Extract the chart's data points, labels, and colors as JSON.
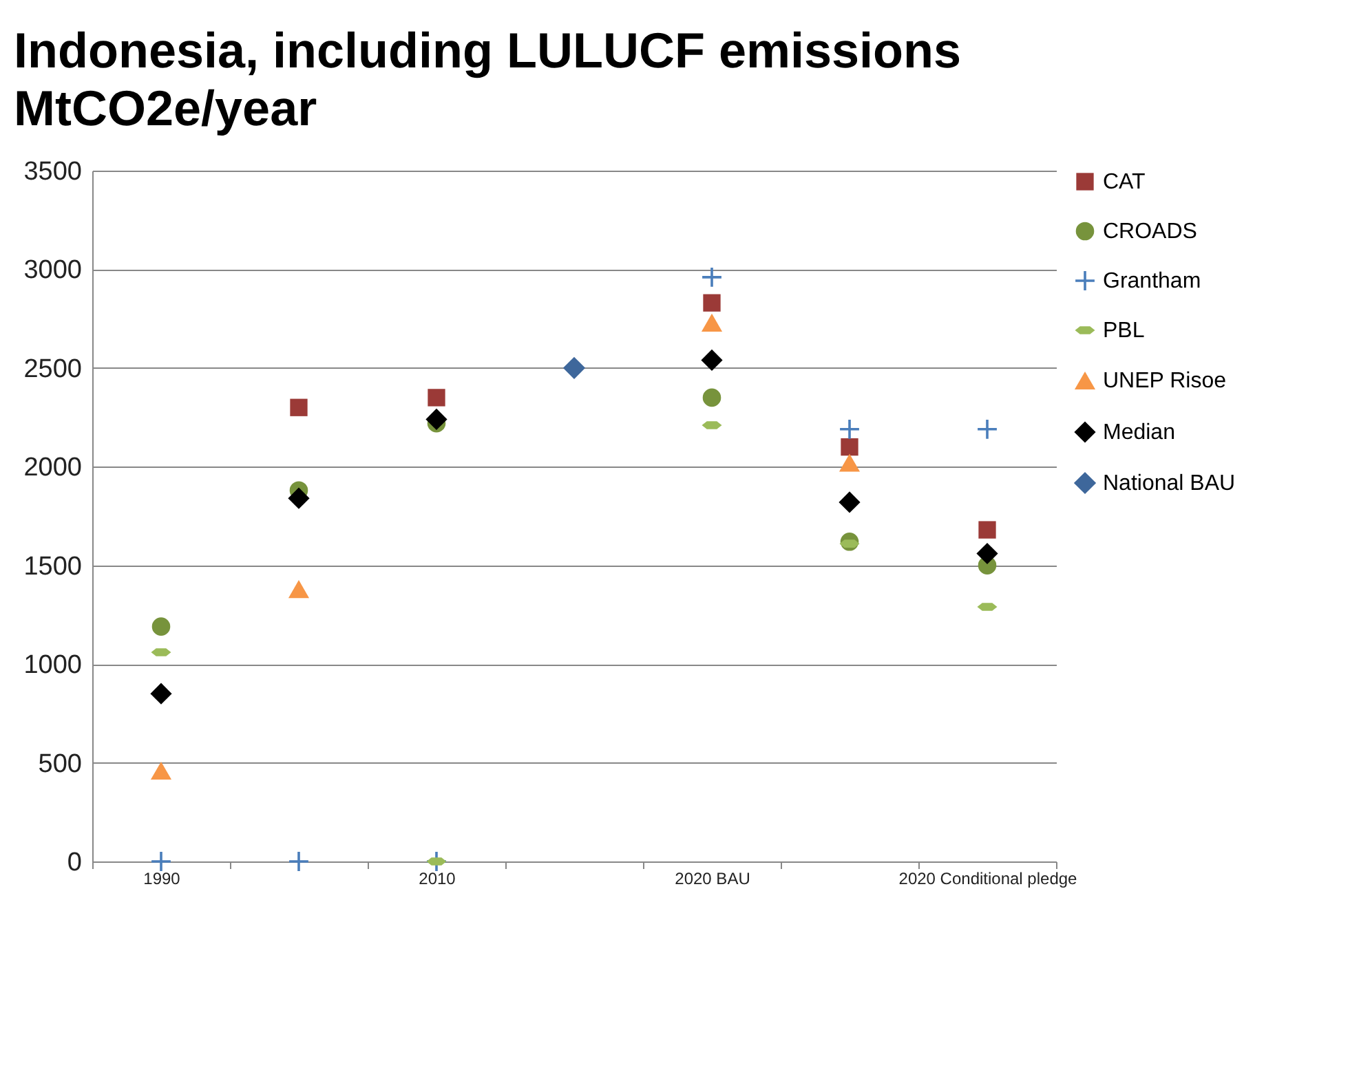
{
  "chart_data": {
    "type": "scatter",
    "title": "Indonesia, including LULUCF emissions",
    "subtitle": "MtCO2e/year",
    "categories": [
      "1990",
      null,
      "2010",
      null,
      "2020 BAU",
      null,
      "2020 Conditional pledge"
    ],
    "ylim": [
      0,
      3500
    ],
    "yticks": [
      0,
      500,
      1000,
      1500,
      2000,
      2500,
      3000,
      3500
    ],
    "grid": "y",
    "legend": "right",
    "series": [
      {
        "name": "CAT",
        "color": "#9b3a37",
        "marker": "square",
        "values": [
          null,
          2300,
          2350,
          null,
          2830,
          2100,
          1680
        ]
      },
      {
        "name": "CROADS",
        "color": "#77933c",
        "marker": "circle",
        "values": [
          1190,
          1880,
          2220,
          null,
          2350,
          1620,
          1500
        ]
      },
      {
        "name": "Grantham",
        "color": "#4a7ebb",
        "marker": "cross",
        "values": [
          0,
          0,
          0,
          null,
          2960,
          2190,
          2190
        ]
      },
      {
        "name": "PBL",
        "color": "#9bbb59",
        "values": [
          1060,
          null,
          0,
          null,
          2210,
          1610,
          1290
        ]
      },
      {
        "name": "UNEP Risoe",
        "color": "#f79646",
        "marker": "triangle",
        "values": [
          460,
          1380,
          null,
          null,
          2730,
          2020,
          null
        ]
      },
      {
        "name": "Median",
        "color": "#000000",
        "marker": "diamond",
        "values": [
          850,
          1840,
          2240,
          null,
          2540,
          1820,
          1560
        ]
      },
      {
        "name": "National BAU",
        "color": "#3e679b",
        "marker": "diamond",
        "values": [
          null,
          null,
          null,
          2500,
          null,
          null,
          null
        ]
      }
    ]
  }
}
